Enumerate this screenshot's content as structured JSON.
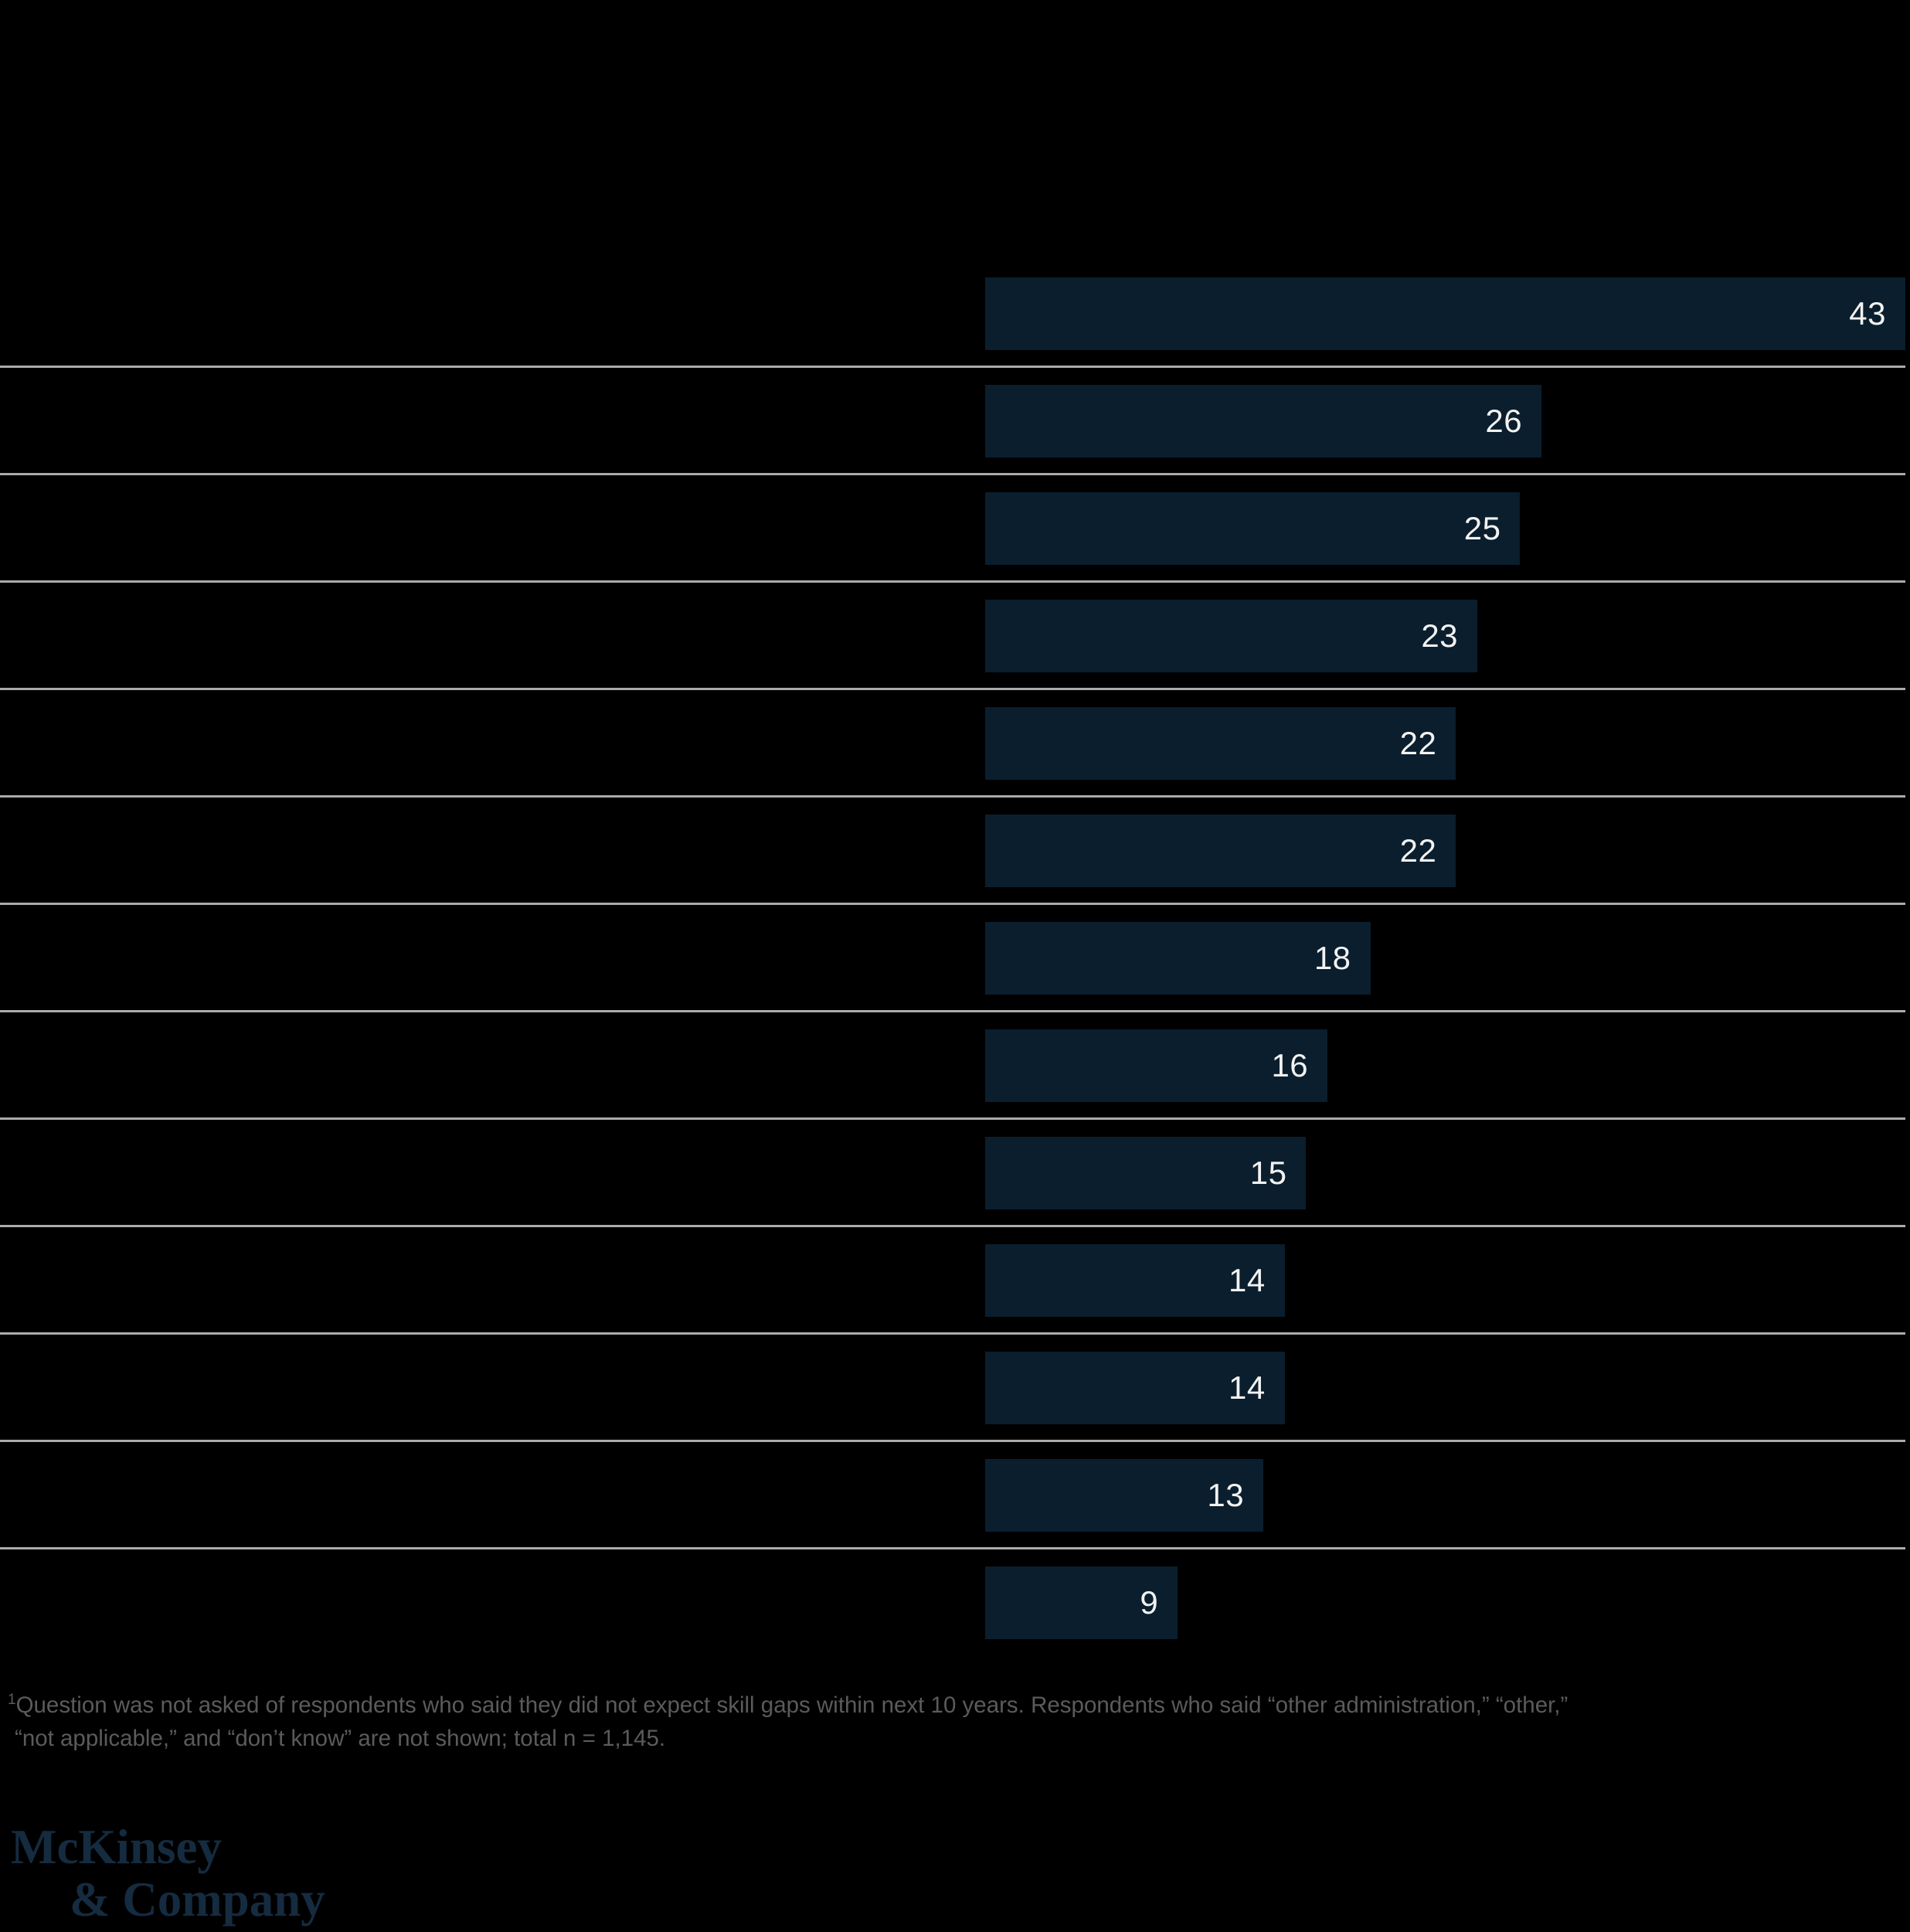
{
  "chart_data": {
    "type": "bar",
    "orientation": "horizontal",
    "values": [
      43,
      26,
      25,
      23,
      22,
      22,
      18,
      16,
      15,
      14,
      14,
      13,
      9
    ],
    "xlim": [
      0,
      43
    ],
    "grid": "horizontal-row-separator-lines",
    "legend": "none",
    "bar_color": "#0A1E2D",
    "value_label_color": "#F2F2F2",
    "separator_color": "#ABABAB",
    "background_color": "#000000",
    "value_labels_position": "inside-right-end"
  },
  "footnote": {
    "marker": "1",
    "line1": "Question was not asked of respondents who said they did not expect skill gaps within next 10 years. Respondents who said “other administration,” “other,”",
    "line2": "“not applicable,” and “don’t know” are not shown; total n = 1,145."
  },
  "logo": {
    "line1": "McKinsey",
    "line2": "& Company"
  }
}
